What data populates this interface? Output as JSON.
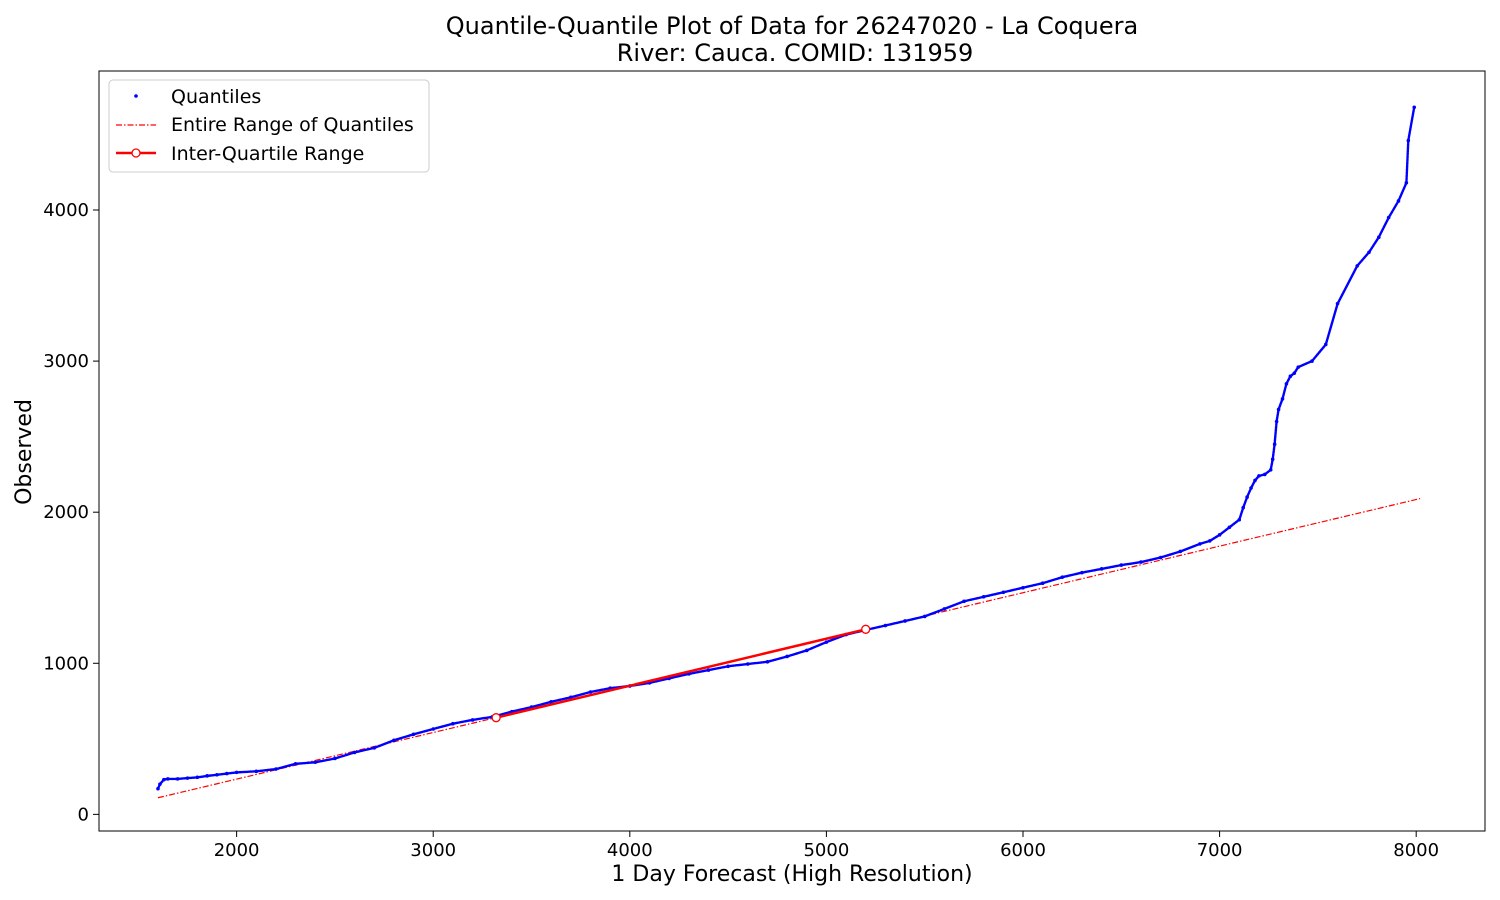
{
  "chart_data": {
    "type": "scatter",
    "title": "Quantile-Quantile Plot of Data for 26247020 - La Coquera",
    "subtitle": "River: Cauca. COMID: 131959",
    "xlabel": "1 Day Forecast (High Resolution)",
    "ylabel": "Observed",
    "xlim": [
      1300,
      8350
    ],
    "ylim": [
      -110,
      4920
    ],
    "xticks": [
      2000,
      3000,
      4000,
      5000,
      6000,
      7000,
      8000
    ],
    "yticks": [
      0,
      1000,
      2000,
      3000,
      4000
    ],
    "grid": false,
    "legend_placement": "top-left",
    "legend": [
      "Quantiles",
      "Entire Range of Quantiles",
      "Inter-Quartile Range"
    ],
    "colors": {
      "quantiles": "#0000ff",
      "entire_range": "#ff0000",
      "iqr": "#ff0000"
    },
    "series": [
      {
        "name": "Quantiles",
        "kind": "points",
        "x": [
          1600,
          1610,
          1630,
          1650,
          1700,
          1750,
          1800,
          1850,
          1900,
          1950,
          2000,
          2100,
          2200,
          2300,
          2400,
          2500,
          2600,
          2700,
          2800,
          2900,
          3000,
          3100,
          3200,
          3300,
          3400,
          3500,
          3600,
          3700,
          3800,
          3900,
          4000,
          4100,
          4200,
          4300,
          4400,
          4500,
          4600,
          4700,
          4800,
          4900,
          5000,
          5100,
          5200,
          5300,
          5400,
          5500,
          5600,
          5700,
          5800,
          5900,
          6000,
          6100,
          6200,
          6300,
          6400,
          6500,
          6600,
          6700,
          6800,
          6900,
          6950,
          7000,
          7050,
          7100,
          7120,
          7140,
          7160,
          7180,
          7200,
          7230,
          7260,
          7270,
          7280,
          7290,
          7300,
          7320,
          7340,
          7360,
          7380,
          7400,
          7470,
          7540,
          7600,
          7700,
          7760,
          7810,
          7860,
          7910,
          7950,
          7960,
          7990
        ],
        "y": [
          170,
          200,
          230,
          235,
          235,
          240,
          245,
          255,
          262,
          270,
          278,
          285,
          300,
          335,
          345,
          370,
          410,
          440,
          490,
          530,
          565,
          600,
          625,
          645,
          680,
          710,
          745,
          775,
          810,
          835,
          850,
          870,
          900,
          930,
          955,
          980,
          995,
          1010,
          1045,
          1085,
          1140,
          1190,
          1220,
          1250,
          1280,
          1310,
          1360,
          1410,
          1440,
          1470,
          1500,
          1530,
          1570,
          1600,
          1625,
          1650,
          1670,
          1700,
          1740,
          1790,
          1810,
          1850,
          1900,
          1950,
          2030,
          2100,
          2160,
          2210,
          2240,
          2250,
          2280,
          2350,
          2450,
          2600,
          2680,
          2750,
          2850,
          2900,
          2920,
          2960,
          3000,
          3110,
          3380,
          3630,
          3720,
          3820,
          3950,
          4060,
          4180,
          4460,
          4680
        ]
      },
      {
        "name": "Entire Range of Quantiles",
        "kind": "dashdot-line",
        "x": [
          1600,
          8020
        ],
        "y": [
          110,
          2090
        ]
      },
      {
        "name": "Inter-Quartile Range",
        "kind": "line-with-markers",
        "x": [
          3320,
          5200
        ],
        "y": [
          640,
          1225
        ]
      }
    ]
  }
}
